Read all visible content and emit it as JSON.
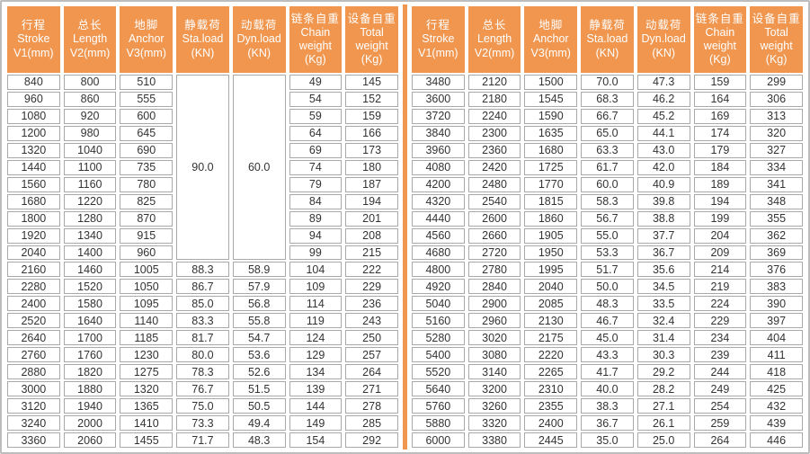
{
  "colors": {
    "header_bg": "#F0964F",
    "header_text": "#FFFFFF",
    "divider": "#F0964F",
    "cell_border": "#A9A9A9",
    "outer_border": "#BDBDBD",
    "cell_text": "#333333"
  },
  "table": {
    "columns": [
      {
        "zh": "行程",
        "en": "Stroke",
        "unit": "V1(mm)"
      },
      {
        "zh": "总长",
        "en": "Length",
        "unit": "V2(mm)"
      },
      {
        "zh": "地脚",
        "en": "Anchor",
        "unit": "V3(mm)"
      },
      {
        "zh": "静载荷",
        "en": "Sta.load",
        "unit": "(KN)"
      },
      {
        "zh": "动载荷",
        "en": "Dyn.load",
        "unit": "(KN)"
      },
      {
        "zh": "链条自重",
        "en": "Chain weight",
        "unit": "(Kg)"
      },
      {
        "zh": "设备自重",
        "en": "Total weight",
        "unit": "(Kg)"
      }
    ],
    "left_merged": {
      "start_row": 0,
      "row_span": 11,
      "values": {
        "3": "90.0",
        "4": "60.0"
      }
    },
    "left_rows": [
      [
        "840",
        "800",
        "510",
        null,
        null,
        "49",
        "145"
      ],
      [
        "960",
        "860",
        "555",
        null,
        null,
        "54",
        "152"
      ],
      [
        "1080",
        "920",
        "600",
        null,
        null,
        "59",
        "159"
      ],
      [
        "1200",
        "980",
        "645",
        null,
        null,
        "64",
        "166"
      ],
      [
        "1320",
        "1040",
        "690",
        null,
        null,
        "69",
        "173"
      ],
      [
        "1440",
        "1100",
        "735",
        null,
        null,
        "74",
        "180"
      ],
      [
        "1560",
        "1160",
        "780",
        null,
        null,
        "79",
        "187"
      ],
      [
        "1680",
        "1220",
        "825",
        null,
        null,
        "84",
        "194"
      ],
      [
        "1800",
        "1280",
        "870",
        null,
        null,
        "89",
        "201"
      ],
      [
        "1920",
        "1340",
        "915",
        null,
        null,
        "94",
        "208"
      ],
      [
        "2040",
        "1400",
        "960",
        null,
        null,
        "99",
        "215"
      ],
      [
        "2160",
        "1460",
        "1005",
        "88.3",
        "58.9",
        "104",
        "222"
      ],
      [
        "2280",
        "1520",
        "1050",
        "86.7",
        "57.9",
        "109",
        "229"
      ],
      [
        "2400",
        "1580",
        "1095",
        "85.0",
        "56.8",
        "114",
        "236"
      ],
      [
        "2520",
        "1640",
        "1140",
        "83.3",
        "55.8",
        "119",
        "243"
      ],
      [
        "2640",
        "1700",
        "1185",
        "81.7",
        "54.7",
        "124",
        "250"
      ],
      [
        "2760",
        "1760",
        "1230",
        "80.0",
        "53.6",
        "129",
        "257"
      ],
      [
        "2880",
        "1820",
        "1275",
        "78.3",
        "52.6",
        "134",
        "264"
      ],
      [
        "3000",
        "1880",
        "1320",
        "76.7",
        "51.5",
        "139",
        "271"
      ],
      [
        "3120",
        "1940",
        "1365",
        "75.0",
        "50.5",
        "144",
        "278"
      ],
      [
        "3240",
        "2000",
        "1410",
        "73.3",
        "49.4",
        "149",
        "285"
      ],
      [
        "3360",
        "2060",
        "1455",
        "71.7",
        "48.3",
        "154",
        "292"
      ]
    ],
    "right_rows": [
      [
        "3480",
        "2120",
        "1500",
        "70.0",
        "47.3",
        "159",
        "299"
      ],
      [
        "3600",
        "2180",
        "1545",
        "68.3",
        "46.2",
        "164",
        "306"
      ],
      [
        "3720",
        "2240",
        "1590",
        "66.7",
        "45.2",
        "169",
        "313"
      ],
      [
        "3840",
        "2300",
        "1635",
        "65.0",
        "44.1",
        "174",
        "320"
      ],
      [
        "3960",
        "2360",
        "1680",
        "63.3",
        "43.0",
        "179",
        "327"
      ],
      [
        "4080",
        "2420",
        "1725",
        "61.7",
        "42.0",
        "184",
        "334"
      ],
      [
        "4200",
        "2480",
        "1770",
        "60.0",
        "40.9",
        "189",
        "341"
      ],
      [
        "4320",
        "2540",
        "1815",
        "58.3",
        "39.8",
        "194",
        "348"
      ],
      [
        "4440",
        "2600",
        "1860",
        "56.7",
        "38.8",
        "199",
        "355"
      ],
      [
        "4560",
        "2660",
        "1905",
        "55.0",
        "37.7",
        "204",
        "362"
      ],
      [
        "4680",
        "2720",
        "1950",
        "53.3",
        "36.7",
        "209",
        "369"
      ],
      [
        "4800",
        "2780",
        "1995",
        "51.7",
        "35.6",
        "214",
        "376"
      ],
      [
        "4920",
        "2840",
        "2040",
        "50.0",
        "34.5",
        "219",
        "383"
      ],
      [
        "5040",
        "2900",
        "2085",
        "48.3",
        "33.5",
        "224",
        "390"
      ],
      [
        "5160",
        "2960",
        "2130",
        "46.7",
        "32.4",
        "229",
        "397"
      ],
      [
        "5280",
        "3020",
        "2175",
        "45.0",
        "31.4",
        "234",
        "404"
      ],
      [
        "5400",
        "3080",
        "2220",
        "43.3",
        "30.3",
        "239",
        "411"
      ],
      [
        "5520",
        "3140",
        "2265",
        "41.7",
        "29.2",
        "244",
        "418"
      ],
      [
        "5640",
        "3200",
        "2310",
        "40.0",
        "28.2",
        "249",
        "425"
      ],
      [
        "5760",
        "3260",
        "2355",
        "38.3",
        "27.1",
        "254",
        "432"
      ],
      [
        "5880",
        "3320",
        "2400",
        "36.7",
        "26.1",
        "259",
        "439"
      ],
      [
        "6000",
        "3380",
        "2445",
        "35.0",
        "25.0",
        "264",
        "446"
      ]
    ]
  }
}
